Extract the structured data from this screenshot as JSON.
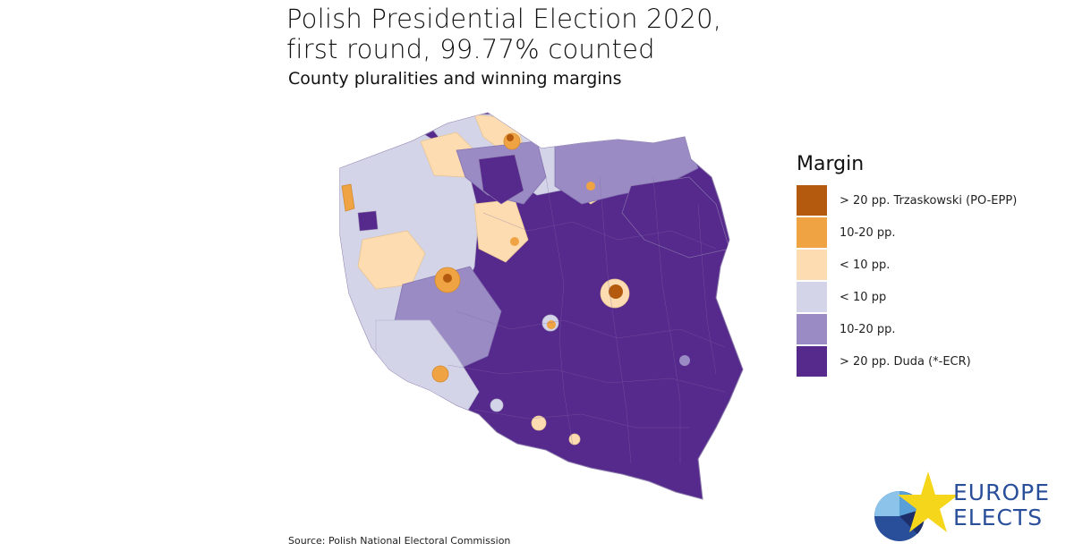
{
  "title": {
    "line1": "Polish Presidential Election 2020,",
    "line2": "first round, 99.77% counted"
  },
  "subtitle": "County pluralities and winning margins",
  "legend": {
    "title": "Margin",
    "items": [
      {
        "label": "> 20 pp. Trzaskowski (PO-EPP)",
        "color": "#b45a0e"
      },
      {
        "label": "10-20 pp.",
        "color": "#f0a343"
      },
      {
        "label": "< 10 pp.",
        "color": "#fcdcb0"
      },
      {
        "label": "< 10 pp",
        "color": "#d4d4e8"
      },
      {
        "label": "10-20 pp.",
        "color": "#9b8bc4"
      },
      {
        "label": "> 20 pp. Duda (*-ECR)",
        "color": "#56298c"
      }
    ]
  },
  "source": "Source: Polish National Electoral Commission",
  "logo": {
    "line1": "EUROPE",
    "line2": "ELECTS"
  }
}
